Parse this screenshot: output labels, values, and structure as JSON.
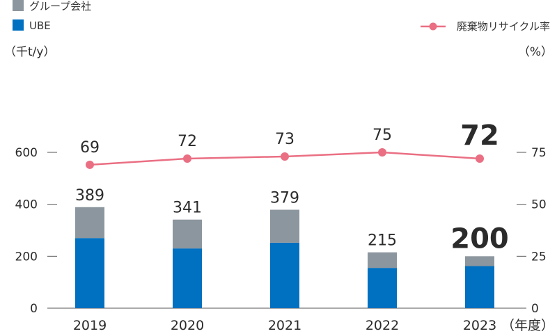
{
  "legend": {
    "group": "グループ会社",
    "ube": "UBE",
    "rate": "廃棄物リサイクル率"
  },
  "units": {
    "left": "（千t/y）",
    "right": "（%）",
    "x": "（年度）"
  },
  "colors": {
    "group": "#8c969e",
    "ube": "#0070c0",
    "rate": "#ea6f83",
    "axis": "#555555"
  },
  "chart_data": {
    "type": "bar",
    "categories": [
      "2019",
      "2020",
      "2021",
      "2022",
      "2023"
    ],
    "series": [
      {
        "name": "UBE",
        "values": [
          270,
          230,
          252,
          155,
          162
        ]
      },
      {
        "name": "グループ会社",
        "values": [
          119,
          111,
          127,
          60,
          38
        ]
      }
    ],
    "totals": [
      389,
      341,
      379,
      215,
      200
    ],
    "line_series": {
      "name": "廃棄物リサイクル率",
      "values": [
        69,
        72,
        73,
        75,
        72
      ]
    },
    "ylim_left": [
      0,
      600
    ],
    "yticks_left": [
      0,
      200,
      400,
      600
    ],
    "ylim_right": [
      0,
      75
    ],
    "yticks_right": [
      0,
      25,
      50,
      75
    ],
    "highlight_index": 4,
    "stacked": true,
    "legend_position": "top"
  }
}
